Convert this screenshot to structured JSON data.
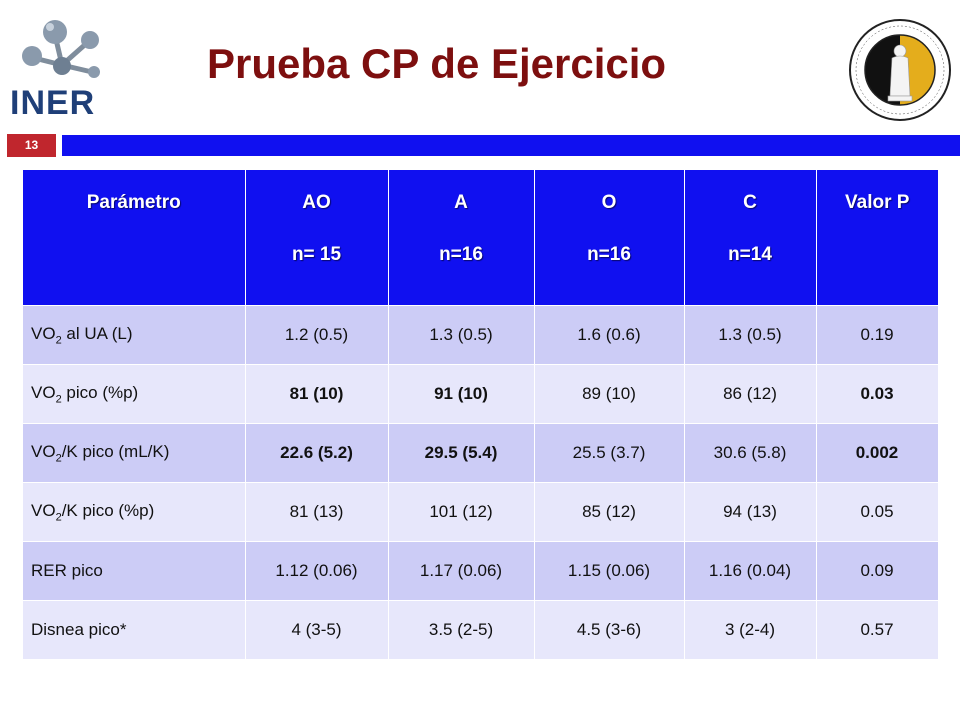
{
  "header": {
    "logo_text": "INER",
    "title": "Prueba CP de Ejercicio",
    "slide_number": "13"
  },
  "table": {
    "columns": [
      {
        "label": "Parámetro",
        "sub": ""
      },
      {
        "label": "AO",
        "sub": "n= 15"
      },
      {
        "label": "A",
        "sub": "n=16"
      },
      {
        "label": "O",
        "sub": "n=16"
      },
      {
        "label": "C",
        "sub": "n=14"
      },
      {
        "label": "Valor P",
        "sub": ""
      }
    ],
    "rows": [
      {
        "param_pre": "VO",
        "param_sub": "2",
        "param_post": " al UA (L)",
        "cells": [
          "1.2 (0.5)",
          "1.3 (0.5)",
          "1.6 (0.6)",
          "1.3 (0.5)",
          "0.19"
        ],
        "bold": [
          false,
          false,
          false,
          false,
          false
        ]
      },
      {
        "param_pre": "VO",
        "param_sub": "2",
        "param_post": " pico (%p)",
        "cells": [
          "81 (10)",
          "91 (10)",
          "89 (10)",
          "86 (12)",
          "0.03"
        ],
        "bold": [
          true,
          true,
          false,
          false,
          true
        ]
      },
      {
        "param_pre": "VO",
        "param_sub": "2",
        "param_post": "/K pico (mL/K)",
        "cells": [
          "22.6 (5.2)",
          "29.5 (5.4)",
          "25.5 (3.7)",
          "30.6 (5.8)",
          "0.002"
        ],
        "bold": [
          true,
          true,
          false,
          false,
          true
        ]
      },
      {
        "param_pre": "VO",
        "param_sub": "2",
        "param_post": "/K pico (%p)",
        "cells": [
          "81 (13)",
          "101 (12)",
          "85 (12)",
          "94 (13)",
          "0.05"
        ],
        "bold": [
          false,
          false,
          false,
          false,
          false
        ]
      },
      {
        "param_pre": "RER pico",
        "param_sub": "",
        "param_post": "",
        "cells": [
          "1.12 (0.06)",
          "1.17 (0.06)",
          "1.15 (0.06)",
          "1.16 (0.04)",
          "0.09"
        ],
        "bold": [
          false,
          false,
          false,
          false,
          false
        ]
      },
      {
        "param_pre": "Disnea pico*",
        "param_sub": "",
        "param_post": "",
        "cells": [
          "4 (3-5)",
          "3.5 (2-5)",
          "4.5 (3-6)",
          "3 (2-4)",
          "0.57"
        ],
        "bold": [
          false,
          false,
          false,
          false,
          false
        ]
      }
    ]
  },
  "colors": {
    "title": "#7d0f0f",
    "header_bar": "#1010f0",
    "slide_badge": "#c0262d",
    "row_odd": "#ccccf6",
    "row_even": "#e7e7fb"
  }
}
